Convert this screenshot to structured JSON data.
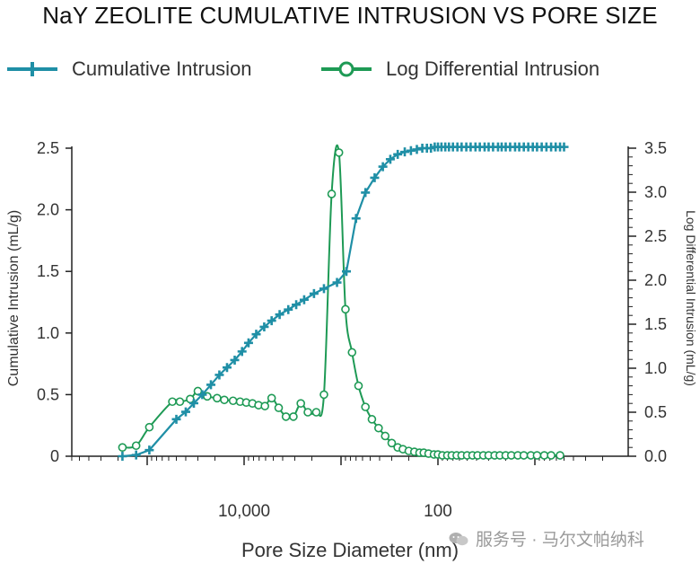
{
  "chart_data": {
    "type": "line",
    "title": "NaY ZEOLITE CUMULATIVE INTRUSION VS PORE SIZE",
    "xlabel": "Pore Size Diameter (nm)",
    "ylabel_left": "Cumulative Intrusion (mL/g)",
    "ylabel_right": "Log Differential Intrusion (mL/g)",
    "x_scale": "log, decreasing left to right",
    "x_ticks": [
      {
        "value": 10000,
        "label": "10,000"
      },
      {
        "value": 100,
        "label": "100"
      }
    ],
    "y_left_ticks": [
      "0",
      "0.5",
      "1.0",
      "1.5",
      "2.0",
      "2.5"
    ],
    "y_right_ticks": [
      "0.0",
      "0.5",
      "1.0",
      "1.5",
      "2.0",
      "2.5",
      "3.0",
      "3.5"
    ],
    "ylim_left": [
      0,
      2.5
    ],
    "ylim_right": [
      0,
      3.5
    ],
    "legend_position": "top",
    "grid": false,
    "series": [
      {
        "name": "Cumulative Intrusion",
        "axis": "left",
        "color": "#1f8fa6",
        "marker": "plus",
        "x": [
          180000,
          130000,
          95000,
          50000,
          40000,
          33000,
          27000,
          22000,
          18000,
          15000,
          12500,
          10500,
          9000,
          7500,
          6200,
          5200,
          4300,
          3500,
          2900,
          2400,
          1900,
          1500,
          1100,
          880,
          700,
          560,
          450,
          370,
          310,
          260,
          220,
          190,
          165,
          145,
          130,
          118,
          108,
          100,
          92,
          84,
          77,
          70,
          63,
          57,
          51,
          46,
          41,
          37,
          33,
          30,
          27,
          24,
          22,
          20,
          18,
          16,
          14.5,
          13,
          11.7,
          10.5,
          9.5,
          8.5,
          7.6,
          6.8,
          6.1,
          5.5,
          5.0
        ],
        "y": [
          0.0,
          0.01,
          0.05,
          0.3,
          0.36,
          0.43,
          0.5,
          0.58,
          0.66,
          0.72,
          0.78,
          0.85,
          0.92,
          0.99,
          1.05,
          1.1,
          1.15,
          1.19,
          1.23,
          1.27,
          1.32,
          1.36,
          1.41,
          1.5,
          1.93,
          2.14,
          2.26,
          2.35,
          2.41,
          2.45,
          2.47,
          2.48,
          2.49,
          2.5,
          2.5,
          2.5,
          2.51,
          2.51,
          2.51,
          2.51,
          2.51,
          2.51,
          2.51,
          2.51,
          2.51,
          2.51,
          2.51,
          2.51,
          2.51,
          2.51,
          2.51,
          2.51,
          2.51,
          2.51,
          2.51,
          2.51,
          2.51,
          2.51,
          2.51,
          2.51,
          2.51,
          2.51,
          2.51,
          2.51,
          2.51,
          2.51,
          2.51
        ]
      },
      {
        "name": "Log Differential Intrusion",
        "axis": "right",
        "color": "#1e9a55",
        "marker": "circle",
        "x": [
          180000,
          130000,
          95000,
          55000,
          46000,
          36000,
          30000,
          24000,
          19000,
          16000,
          13000,
          11000,
          9500,
          8200,
          7100,
          6100,
          5200,
          4400,
          3700,
          3100,
          2600,
          2200,
          1800,
          1500,
          1250,
          1050,
          900,
          770,
          660,
          560,
          480,
          410,
          350,
          300,
          260,
          230,
          200,
          175,
          155,
          140,
          125,
          110,
          100,
          90,
          80,
          72,
          64,
          57,
          50,
          44,
          39,
          34,
          30,
          26,
          23,
          20,
          17.5,
          15,
          13,
          11,
          9.5,
          8,
          6.8,
          5.5
        ],
        "y": [
          0.1,
          0.12,
          0.33,
          0.62,
          0.62,
          0.65,
          0.74,
          0.68,
          0.66,
          0.64,
          0.63,
          0.62,
          0.61,
          0.6,
          0.58,
          0.57,
          0.66,
          0.55,
          0.45,
          0.45,
          0.6,
          0.5,
          0.5,
          0.7,
          2.98,
          3.45,
          1.67,
          1.18,
          0.8,
          0.56,
          0.42,
          0.32,
          0.23,
          0.15,
          0.1,
          0.08,
          0.06,
          0.05,
          0.04,
          0.04,
          0.03,
          0.02,
          0.02,
          0.01,
          0.01,
          0.01,
          0.01,
          0.01,
          0.01,
          0.01,
          0.01,
          0.01,
          0.01,
          0.01,
          0.01,
          0.01,
          0.01,
          0.01,
          0.01,
          0.01,
          0.01,
          0.01,
          0.01,
          0.01
        ]
      }
    ]
  },
  "watermark": "服务号 · 马尔文帕纳科"
}
